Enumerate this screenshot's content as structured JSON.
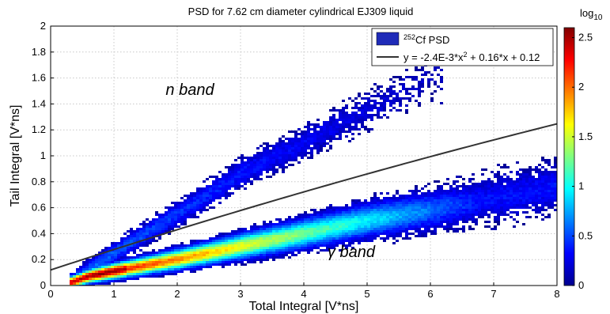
{
  "chart_data": {
    "type": "heatmap",
    "title": "PSD for 7.62 cm diameter cylindrical EJ309 liquid",
    "xlabel": "Total Integral [V*ns]",
    "ylabel": "Tail Integral [V*ns]",
    "xlim": [
      0,
      8
    ],
    "ylim": [
      0,
      2
    ],
    "xticks": [
      "0",
      "1",
      "2",
      "3",
      "4",
      "5",
      "6",
      "7",
      "8"
    ],
    "yticks": [
      "0",
      "0.2",
      "0.4",
      "0.6",
      "0.8",
      "1",
      "1.2",
      "1.4",
      "1.6",
      "1.8",
      "2"
    ],
    "grid": true,
    "colorbar": {
      "label": "log",
      "label_sub": "10",
      "range": [
        0,
        2.6
      ],
      "ticks": [
        "0",
        "0.5",
        "1",
        "1.5",
        "2",
        "2.5"
      ]
    },
    "legend": {
      "placement": "top-right",
      "entries": [
        {
          "sup": "252",
          "text": "Cf PSD",
          "kind": "patch",
          "color": "#1f2bb8"
        },
        {
          "text_parts": [
            "y = -2.4E-3*x",
            "2",
            " + 0.16*x + 0.12"
          ],
          "kind": "line",
          "color": "#333333"
        }
      ]
    },
    "fit_line": {
      "a": -0.0024,
      "b": 0.16,
      "c": 0.12,
      "x_range": [
        0,
        8
      ]
    },
    "bands": {
      "gamma": {
        "x_range": [
          0.3,
          8
        ],
        "center": [
          [
            0.3,
            0.02
          ],
          [
            0.6,
            0.07
          ],
          [
            1,
            0.11
          ],
          [
            2,
            0.2
          ],
          [
            3,
            0.3
          ],
          [
            4,
            0.4
          ],
          [
            5,
            0.5
          ],
          [
            6,
            0.58
          ],
          [
            7,
            0.67
          ],
          [
            8,
            0.76
          ]
        ]
      },
      "neutron": {
        "x_range": [
          0.4,
          6.2
        ],
        "center": [
          [
            0.4,
            0.05
          ],
          [
            1,
            0.25
          ],
          [
            2,
            0.55
          ],
          [
            3,
            0.86
          ],
          [
            4,
            1.1
          ],
          [
            5,
            1.35
          ],
          [
            6,
            1.6
          ]
        ]
      }
    },
    "annotations": [
      {
        "text": "n band",
        "x": 2.2,
        "y": 1.47
      },
      {
        "text": "γ band",
        "x": 4.75,
        "y": 0.22
      }
    ]
  }
}
